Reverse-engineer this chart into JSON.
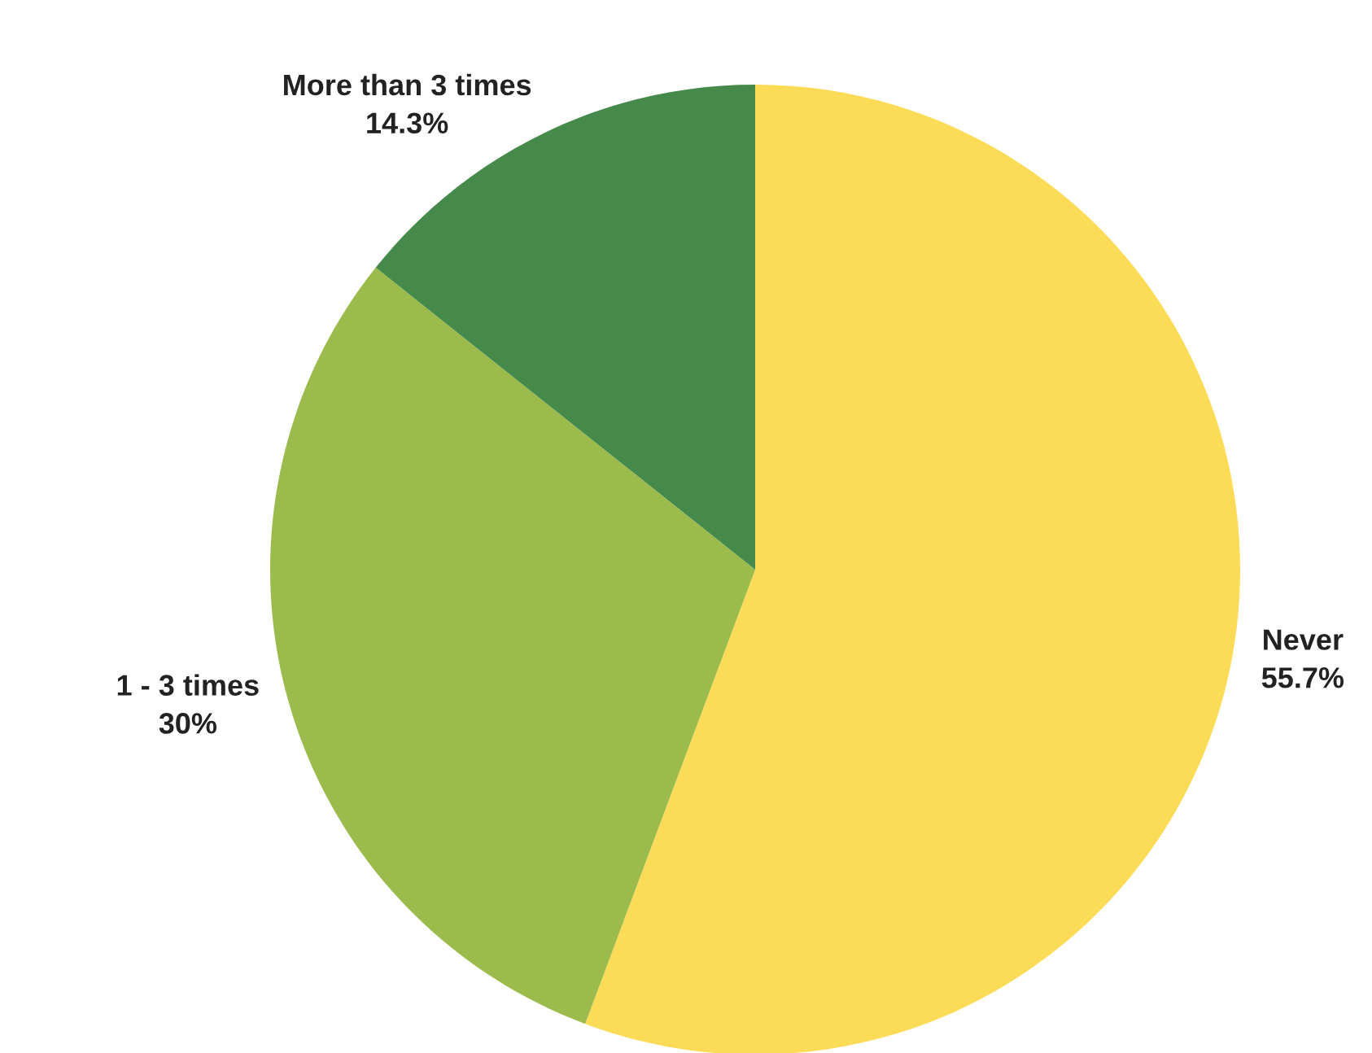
{
  "chart_data": {
    "type": "pie",
    "categories": [
      "Never",
      "1 - 3 times",
      "More than 3 times"
    ],
    "values": [
      55.7,
      30,
      14.3
    ],
    "value_labels": [
      "55.7%",
      "30%",
      "14.3%"
    ],
    "colors": [
      "#fcdb56",
      "#9bbb4c",
      "#468a4b"
    ]
  }
}
